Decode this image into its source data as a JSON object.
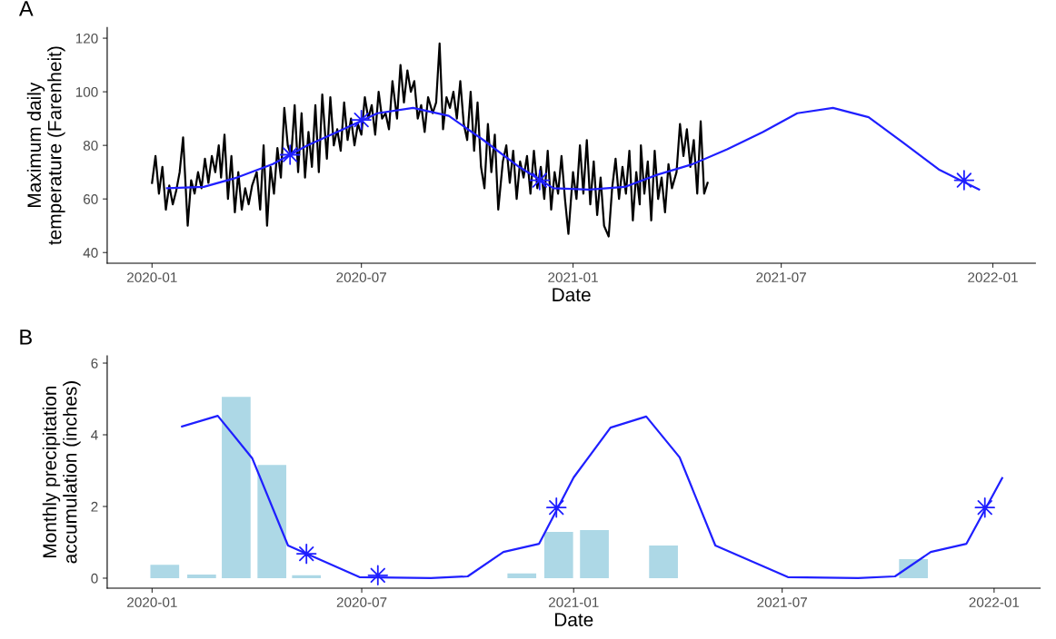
{
  "chart_data": [
    {
      "type": "line",
      "annotations": [
        "A"
      ],
      "xlabel": "Date",
      "ylabel": "Maximum daily\ntemperature (Farenheit)",
      "xlim": [
        "2019-11-23",
        "2022-02-07"
      ],
      "ylim": [
        36,
        124
      ],
      "xticks": [
        "2020-01",
        "2020-07",
        "2021-01",
        "2021-07",
        "2022-01"
      ],
      "yticks": [
        40,
        60,
        80,
        100,
        120
      ],
      "grid": false,
      "series": [
        {
          "color": "#000000",
          "x": [
            "2020-01-01",
            "2020-01-04",
            "2020-01-07",
            "2020-01-10",
            "2020-01-13",
            "2020-01-16",
            "2020-01-19",
            "2020-01-22",
            "2020-01-25",
            "2020-01-28",
            "2020-02-01",
            "2020-02-04",
            "2020-02-07",
            "2020-02-10",
            "2020-02-13",
            "2020-02-16",
            "2020-02-19",
            "2020-02-22",
            "2020-02-25",
            "2020-02-28",
            "2020-03-01",
            "2020-03-04",
            "2020-03-07",
            "2020-03-10",
            "2020-03-13",
            "2020-03-16",
            "2020-03-19",
            "2020-03-22",
            "2020-03-25",
            "2020-03-28",
            "2020-04-01",
            "2020-04-04",
            "2020-04-07",
            "2020-04-10",
            "2020-04-13",
            "2020-04-16",
            "2020-04-19",
            "2020-04-22",
            "2020-04-25",
            "2020-04-28",
            "2020-05-01",
            "2020-05-04",
            "2020-05-07",
            "2020-05-10",
            "2020-05-13",
            "2020-05-16",
            "2020-05-19",
            "2020-05-22",
            "2020-05-25",
            "2020-05-28",
            "2020-06-01",
            "2020-06-04",
            "2020-06-07",
            "2020-06-10",
            "2020-06-13",
            "2020-06-16",
            "2020-06-19",
            "2020-06-22",
            "2020-06-25",
            "2020-06-28",
            "2020-07-01",
            "2020-07-04",
            "2020-07-07",
            "2020-07-10",
            "2020-07-13",
            "2020-07-16",
            "2020-07-19",
            "2020-07-22",
            "2020-07-25",
            "2020-07-28",
            "2020-08-01",
            "2020-08-04",
            "2020-08-07",
            "2020-08-10",
            "2020-08-13",
            "2020-08-16",
            "2020-08-19",
            "2020-08-22",
            "2020-08-25",
            "2020-08-28",
            "2020-09-01",
            "2020-09-04",
            "2020-09-07",
            "2020-09-10",
            "2020-09-13",
            "2020-09-16",
            "2020-09-19",
            "2020-09-22",
            "2020-09-25",
            "2020-09-28",
            "2020-10-01",
            "2020-10-04",
            "2020-10-07",
            "2020-10-10",
            "2020-10-13",
            "2020-10-16",
            "2020-10-19",
            "2020-10-22",
            "2020-10-25",
            "2020-10-28",
            "2020-11-01",
            "2020-11-04",
            "2020-11-07",
            "2020-11-10",
            "2020-11-13",
            "2020-11-16",
            "2020-11-19",
            "2020-11-22",
            "2020-11-25",
            "2020-11-28",
            "2020-12-01",
            "2020-12-04",
            "2020-12-07",
            "2020-12-10",
            "2020-12-13",
            "2020-12-16",
            "2020-12-19",
            "2020-12-22",
            "2020-12-25",
            "2020-12-28",
            "2021-01-01",
            "2021-01-04",
            "2021-01-07",
            "2021-01-10",
            "2021-01-13",
            "2021-01-16",
            "2021-01-19",
            "2021-01-22",
            "2021-01-25",
            "2021-01-28",
            "2021-02-01",
            "2021-02-04",
            "2021-02-07",
            "2021-02-10",
            "2021-02-13",
            "2021-02-16",
            "2021-02-19",
            "2021-02-22",
            "2021-02-25",
            "2021-02-28",
            "2021-03-01",
            "2021-03-04",
            "2021-03-07",
            "2021-03-10",
            "2021-03-13",
            "2021-03-16",
            "2021-03-19",
            "2021-03-22",
            "2021-03-25",
            "2021-03-28",
            "2021-04-01",
            "2021-04-04",
            "2021-04-07",
            "2021-04-10",
            "2021-04-13",
            "2021-04-16",
            "2021-04-19",
            "2021-04-22",
            "2021-04-25",
            "2021-04-28"
          ],
          "values": [
            66,
            76,
            62,
            72,
            56,
            65,
            58,
            63,
            70,
            83,
            50,
            67,
            62,
            70,
            64,
            75,
            66,
            76,
            70,
            80,
            68,
            84,
            60,
            76,
            55,
            70,
            56,
            64,
            58,
            65,
            70,
            56,
            80,
            50,
            72,
            62,
            79,
            68,
            94,
            80,
            76,
            95,
            70,
            92,
            68,
            85,
            72,
            95,
            70,
            99,
            75,
            98,
            80,
            86,
            78,
            96,
            82,
            90,
            80,
            88,
            84,
            98,
            90,
            95,
            84,
            100,
            90,
            92,
            86,
            104,
            90,
            110,
            96,
            108,
            100,
            104,
            90,
            95,
            85,
            98,
            92,
            96,
            118,
            86,
            98,
            94,
            100,
            90,
            104,
            88,
            82,
            100,
            78,
            96,
            72,
            64,
            88,
            70,
            84,
            56,
            74,
            80,
            66,
            78,
            60,
            74,
            68,
            76,
            62,
            78,
            64,
            72,
            60,
            78,
            56,
            70,
            62,
            76,
            60,
            47,
            70,
            60,
            80,
            62,
            82,
            58,
            74,
            54,
            68,
            50,
            46,
            64,
            75,
            60,
            72,
            62,
            78,
            52,
            70,
            58,
            80,
            62,
            74,
            52,
            78,
            60,
            68,
            55,
            73,
            64,
            70,
            88,
            76,
            86,
            72,
            82,
            62,
            89,
            62,
            66
          ]
        },
        {
          "color": "#1f1fff",
          "x": [
            "2020-01-14",
            "2020-02-15",
            "2020-03-15",
            "2020-04-15",
            "2020-05-15",
            "2020-06-15",
            "2020-07-15",
            "2020-08-15",
            "2020-09-15",
            "2020-10-15",
            "2020-11-15",
            "2020-12-15",
            "2021-01-15",
            "2021-02-15",
            "2021-03-15",
            "2021-04-15",
            "2021-05-15",
            "2021-06-15",
            "2021-07-15",
            "2021-08-15",
            "2021-09-15",
            "2021-10-15",
            "2021-11-15",
            "2021-12-20"
          ],
          "values": [
            64,
            64.5,
            68,
            73,
            80,
            86,
            92,
            94,
            91,
            82,
            72,
            64,
            63.5,
            64.5,
            69,
            73,
            78.5,
            85,
            92,
            94,
            90.5,
            81,
            71,
            63.5
          ]
        },
        {
          "type": "scatter",
          "color": "#1f1fff",
          "marker": "star",
          "x": [
            "2020-04-30",
            "2020-07-01",
            "2020-12-03",
            "2021-12-07"
          ],
          "values": [
            76.5,
            89.5,
            67,
            67
          ]
        }
      ]
    },
    {
      "type": "bar",
      "annotations": [
        "B"
      ],
      "xlabel": "Date",
      "ylabel": "Monthly precipitation\naccumulation (inches)",
      "xlim": [
        "2019-11-23",
        "2022-02-10"
      ],
      "ylim": [
        -0.28,
        6.2
      ],
      "xticks": [
        "2020-01",
        "2020-07",
        "2021-01",
        "2021-07",
        "2022-01"
      ],
      "yticks": [
        0,
        2,
        4,
        6
      ],
      "grid": false,
      "series": [
        {
          "color": "#add8e6",
          "x": [
            "2020-01-12",
            "2020-02-13",
            "2020-03-14",
            "2020-04-14",
            "2020-05-14",
            "2020-11-17",
            "2020-12-19",
            "2021-01-19",
            "2021-03-20",
            "2021-10-23"
          ],
          "values": [
            0.37,
            0.1,
            5.06,
            3.16,
            0.08,
            0.13,
            1.29,
            1.34,
            0.91,
            0.53
          ]
        },
        {
          "type": "line",
          "color": "#1f1fff",
          "x": [
            "2020-01-27",
            "2020-02-27",
            "2020-03-28",
            "2020-04-28",
            "2020-06-29",
            "2020-08-30",
            "2020-10-01",
            "2020-11-01",
            "2020-12-02",
            "2021-01-01",
            "2021-02-02",
            "2021-03-05",
            "2021-04-03",
            "2021-05-04",
            "2021-07-06",
            "2021-09-05",
            "2021-10-07",
            "2021-11-07",
            "2021-12-08",
            "2022-01-08"
          ],
          "values": [
            4.23,
            4.53,
            3.34,
            0.91,
            0.03,
            0.0,
            0.05,
            0.73,
            0.96,
            2.81,
            4.2,
            4.51,
            3.37,
            0.91,
            0.03,
            0.0,
            0.05,
            0.73,
            0.96,
            2.79
          ]
        },
        {
          "type": "scatter",
          "color": "#1f1fff",
          "marker": "star",
          "x": [
            "2020-05-14",
            "2020-07-15",
            "2020-12-17",
            "2021-12-24"
          ],
          "values": [
            0.68,
            0.08,
            1.97,
            1.97
          ]
        }
      ]
    }
  ]
}
